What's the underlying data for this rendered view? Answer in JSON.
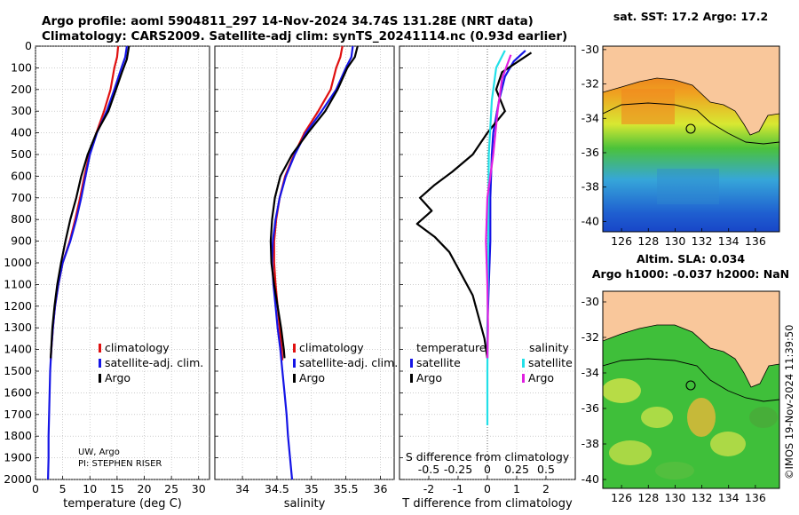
{
  "header": {
    "title_line1": "Argo profile: aoml 5904811_297 14-Nov-2024 34.74S 131.28E (NRT data)",
    "title_line2": "Climatology: CARS2009. Satellite-adj clim: synTS_20241114.nc (0.93d earlier)"
  },
  "credits": {
    "line1": "UW, Argo",
    "line2": "PI: STEPHEN RISER",
    "watermark": "©IMOS 19-Nov-2024 11:39:50"
  },
  "colors": {
    "climatology": "#e01010",
    "satellite_adj": "#1515e6",
    "argo": "#000000",
    "sal_sat": "#22e0e8",
    "sal_argo": "#e020e0",
    "land": "#f9c79b"
  },
  "chart_data": [
    {
      "type": "line",
      "xlabel": "temperature (deg C)",
      "xlim": [
        0,
        32
      ],
      "xticks": [
        "0",
        "5",
        "10",
        "15",
        "20",
        "25",
        "30"
      ],
      "ylim": [
        0,
        2000
      ],
      "yticks": [
        "0",
        "100",
        "200",
        "300",
        "400",
        "500",
        "600",
        "700",
        "800",
        "900",
        "1000",
        "1100",
        "1200",
        "1300",
        "1400",
        "1500",
        "1600",
        "1700",
        "1800",
        "1900",
        "2000"
      ],
      "legend": [
        "climatology",
        "satellite-adj. clim.",
        "Argo"
      ],
      "series": [
        {
          "name": "climatology",
          "color": "#e01010",
          "points": [
            [
              15.2,
              0
            ],
            [
              15.0,
              50
            ],
            [
              14.5,
              100
            ],
            [
              13.8,
              200
            ],
            [
              12.6,
              300
            ],
            [
              11.2,
              400
            ],
            [
              9.9,
              500
            ],
            [
              9.0,
              600
            ],
            [
              8.2,
              700
            ],
            [
              7.3,
              800
            ],
            [
              6.3,
              900
            ],
            [
              5.0,
              1000
            ],
            [
              4.2,
              1100
            ],
            [
              3.6,
              1200
            ],
            [
              3.2,
              1300
            ],
            [
              2.9,
              1400
            ],
            [
              2.8,
              1450
            ]
          ]
        },
        {
          "name": "satellite-adj. clim.",
          "color": "#1515e6",
          "points": [
            [
              16.8,
              0
            ],
            [
              16.5,
              50
            ],
            [
              15.8,
              100
            ],
            [
              14.5,
              200
            ],
            [
              13.1,
              300
            ],
            [
              11.3,
              400
            ],
            [
              10.0,
              500
            ],
            [
              9.2,
              600
            ],
            [
              8.4,
              700
            ],
            [
              7.5,
              800
            ],
            [
              6.4,
              900
            ],
            [
              5.0,
              1000
            ],
            [
              4.2,
              1100
            ],
            [
              3.6,
              1200
            ],
            [
              3.2,
              1300
            ],
            [
              2.9,
              1400
            ],
            [
              2.7,
              1500
            ],
            [
              2.6,
              1600
            ],
            [
              2.5,
              1700
            ],
            [
              2.4,
              1800
            ],
            [
              2.4,
              1900
            ],
            [
              2.3,
              2000
            ]
          ]
        },
        {
          "name": "Argo",
          "color": "#000000",
          "points": [
            [
              17.2,
              0
            ],
            [
              16.8,
              60
            ],
            [
              15.9,
              120
            ],
            [
              14.8,
              200
            ],
            [
              13.4,
              300
            ],
            [
              11.2,
              400
            ],
            [
              9.6,
              500
            ],
            [
              8.4,
              600
            ],
            [
              7.5,
              700
            ],
            [
              6.4,
              800
            ],
            [
              5.5,
              900
            ],
            [
              4.7,
              1000
            ],
            [
              4.0,
              1100
            ],
            [
              3.5,
              1200
            ],
            [
              3.1,
              1300
            ],
            [
              2.8,
              1440
            ]
          ]
        }
      ]
    },
    {
      "type": "line",
      "xlabel": "salinity",
      "xlim": [
        33.6,
        36.2
      ],
      "xticks": [
        "34",
        "34.5",
        "35",
        "35.5",
        "36"
      ],
      "ylim": [
        0,
        2000
      ],
      "legend": [
        "climatology",
        "satellite-adj. clim.",
        "Argo"
      ],
      "series": [
        {
          "name": "climatology",
          "color": "#e01010",
          "points": [
            [
              35.45,
              0
            ],
            [
              35.42,
              50
            ],
            [
              35.36,
              100
            ],
            [
              35.28,
              200
            ],
            [
              35.1,
              300
            ],
            [
              34.9,
              400
            ],
            [
              34.75,
              500
            ],
            [
              34.62,
              600
            ],
            [
              34.54,
              700
            ],
            [
              34.49,
              800
            ],
            [
              34.46,
              900
            ],
            [
              34.46,
              1000
            ],
            [
              34.48,
              1100
            ],
            [
              34.51,
              1200
            ],
            [
              34.54,
              1300
            ],
            [
              34.57,
              1400
            ],
            [
              34.58,
              1450
            ]
          ]
        },
        {
          "name": "satellite-adj. clim.",
          "color": "#1515e6",
          "points": [
            [
              35.6,
              0
            ],
            [
              35.58,
              50
            ],
            [
              35.5,
              100
            ],
            [
              35.36,
              200
            ],
            [
              35.15,
              300
            ],
            [
              34.92,
              400
            ],
            [
              34.76,
              500
            ],
            [
              34.63,
              600
            ],
            [
              34.54,
              700
            ],
            [
              34.48,
              800
            ],
            [
              34.44,
              900
            ],
            [
              34.43,
              1000
            ],
            [
              34.45,
              1100
            ],
            [
              34.48,
              1200
            ],
            [
              34.51,
              1300
            ],
            [
              34.55,
              1400
            ],
            [
              34.58,
              1500
            ],
            [
              34.61,
              1600
            ],
            [
              34.64,
              1700
            ],
            [
              34.66,
              1800
            ],
            [
              34.69,
              1900
            ],
            [
              34.72,
              2000
            ]
          ]
        },
        {
          "name": "Argo",
          "color": "#000000",
          "points": [
            [
              35.67,
              0
            ],
            [
              35.63,
              50
            ],
            [
              35.52,
              100
            ],
            [
              35.38,
              200
            ],
            [
              35.2,
              300
            ],
            [
              34.95,
              400
            ],
            [
              34.72,
              500
            ],
            [
              34.55,
              600
            ],
            [
              34.47,
              700
            ],
            [
              34.43,
              800
            ],
            [
              34.41,
              900
            ],
            [
              34.42,
              1000
            ],
            [
              34.46,
              1100
            ],
            [
              34.51,
              1200
            ],
            [
              34.56,
              1300
            ],
            [
              34.6,
              1400
            ],
            [
              34.61,
              1440
            ]
          ]
        }
      ]
    },
    {
      "type": "line",
      "xlabel": "T difference from climatology",
      "xlabel2": "S difference from climatology",
      "xlim": [
        -3,
        3
      ],
      "xticks": [
        "-2",
        "-1",
        "0",
        "1",
        "2"
      ],
      "xticks_top": [
        "-0.5",
        "-0.25",
        "0",
        "0.25",
        "0.5"
      ],
      "ylim": [
        0,
        2000
      ],
      "legend_left_title": "temperature",
      "legend_left": [
        "satellite",
        "Argo"
      ],
      "legend_right_title": "salinity",
      "legend_right": [
        "satellite",
        "Argo"
      ],
      "series": [
        {
          "name": "temperature satellite",
          "color": "#1515e6",
          "points": [
            [
              1.3,
              20
            ],
            [
              0.9,
              70
            ],
            [
              0.6,
              140
            ],
            [
              0.4,
              250
            ],
            [
              0.2,
              400
            ],
            [
              0.15,
              500
            ],
            [
              0.1,
              700
            ],
            [
              0.1,
              900
            ],
            [
              0.05,
              1100
            ],
            [
              0.0,
              1300
            ],
            [
              0.0,
              1440
            ]
          ]
        },
        {
          "name": "temperature Argo",
          "color": "#000000",
          "points": [
            [
              1.5,
              30
            ],
            [
              0.5,
              120
            ],
            [
              0.3,
              200
            ],
            [
              0.6,
              300
            ],
            [
              0.0,
              400
            ],
            [
              -0.5,
              500
            ],
            [
              -1.2,
              580
            ],
            [
              -1.8,
              640
            ],
            [
              -2.3,
              700
            ],
            [
              -1.9,
              760
            ],
            [
              -2.4,
              820
            ],
            [
              -1.8,
              880
            ],
            [
              -1.3,
              950
            ],
            [
              -0.9,
              1050
            ],
            [
              -0.5,
              1150
            ],
            [
              -0.3,
              1250
            ],
            [
              -0.1,
              1350
            ],
            [
              0.0,
              1440
            ]
          ]
        },
        {
          "name": "salinity satellite",
          "color": "#22e0e8",
          "points": [
            [
              0.6,
              20
            ],
            [
              0.3,
              100
            ],
            [
              0.15,
              250
            ],
            [
              0.05,
              500
            ],
            [
              0.02,
              1000
            ],
            [
              0.0,
              1500
            ],
            [
              0.0,
              1750
            ]
          ]
        },
        {
          "name": "salinity Argo",
          "color": "#e020e0",
          "points": [
            [
              0.8,
              40
            ],
            [
              0.5,
              150
            ],
            [
              0.35,
              300
            ],
            [
              0.2,
              500
            ],
            [
              0.0,
              700
            ],
            [
              -0.05,
              900
            ],
            [
              0.0,
              1100
            ],
            [
              0.02,
              1300
            ],
            [
              0.0,
              1440
            ]
          ]
        }
      ]
    },
    {
      "type": "heatmap",
      "title": "sat. SST: 17.2 Argo: 17.2",
      "xticks": [
        "126",
        "128",
        "130",
        "132",
        "134",
        "136"
      ],
      "yticks": [
        "-30",
        "-32",
        "-34",
        "-36",
        "-38",
        "-40"
      ],
      "marker": [
        131.28,
        -34.74
      ]
    },
    {
      "type": "heatmap",
      "title_line1": "Altim. SLA: 0.034",
      "title_line2": "Argo h1000: -0.037 h2000: NaN",
      "xticks": [
        "126",
        "128",
        "130",
        "132",
        "134",
        "136"
      ],
      "yticks": [
        "-30",
        "-32",
        "-34",
        "-36",
        "-38",
        "-40"
      ],
      "marker": [
        131.28,
        -34.74
      ]
    }
  ]
}
